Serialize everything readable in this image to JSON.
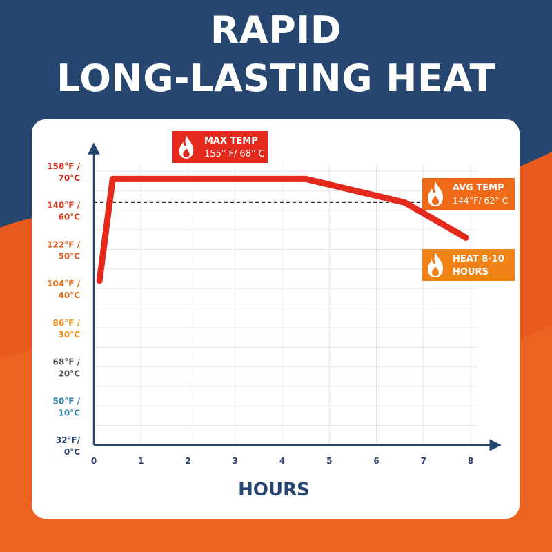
{
  "header": {
    "title_line1": "RAPID",
    "title_line2": "LONG-LASTING HEAT"
  },
  "colors": {
    "background_top": "#27466f",
    "background_bottom": "#e85a1e",
    "line": "#e32a1c",
    "badge_red": "#e32a1c",
    "badge_orange": "#ee6a19",
    "badge_amber": "#f08218",
    "axis": "#27466f"
  },
  "badges": {
    "max_temp": {
      "line1": "MAX TEMP",
      "line2": "155° F/ 68° C",
      "icon": "flame-icon"
    },
    "avg_temp": {
      "line1": "AVG TEMP",
      "line2": "144°F/ 62° C",
      "icon": "flame-icon"
    },
    "heat_hours": {
      "line1": "HEAT 8-10",
      "line2": "HOURS",
      "icon": "flame-icon"
    }
  },
  "chart_data": {
    "type": "line",
    "xlabel": "HOURS",
    "ylabel": "",
    "xlim": [
      0,
      8
    ],
    "ylim": [
      0,
      70
    ],
    "x_ticks": [
      "0",
      "1",
      "2",
      "3",
      "4",
      "5",
      "6",
      "7",
      "8"
    ],
    "y_ticks": [
      {
        "value": 0,
        "line1": "32°F/",
        "line2": "0°C",
        "color": "#27466f"
      },
      {
        "value": 10,
        "line1": "50°F /",
        "line2": "10°C",
        "color": "#2d7fa3"
      },
      {
        "value": 20,
        "line1": "68°F /",
        "line2": "20°C",
        "color": "#555555"
      },
      {
        "value": 30,
        "line1": "86°F /",
        "line2": "30°C",
        "color": "#e8901c"
      },
      {
        "value": 40,
        "line1": "104°F /",
        "line2": "40°C",
        "color": "#e0701a"
      },
      {
        "value": 50,
        "line1": "122°F /",
        "line2": "50°C",
        "color": "#de5a1c"
      },
      {
        "value": 60,
        "line1": "140°F /",
        "line2": "60°C",
        "color": "#d8391c"
      },
      {
        "value": 70,
        "line1": "158°F /",
        "line2": "70°C",
        "color": "#cf2a1c"
      }
    ],
    "series": [
      {
        "x": [
          0.12,
          0.4,
          4.5,
          6.6,
          7.9
        ],
        "y": [
          42,
          68,
          68,
          62,
          53
        ]
      }
    ],
    "reference_line": {
      "y": 62,
      "style": "dashed"
    },
    "grid": true
  }
}
